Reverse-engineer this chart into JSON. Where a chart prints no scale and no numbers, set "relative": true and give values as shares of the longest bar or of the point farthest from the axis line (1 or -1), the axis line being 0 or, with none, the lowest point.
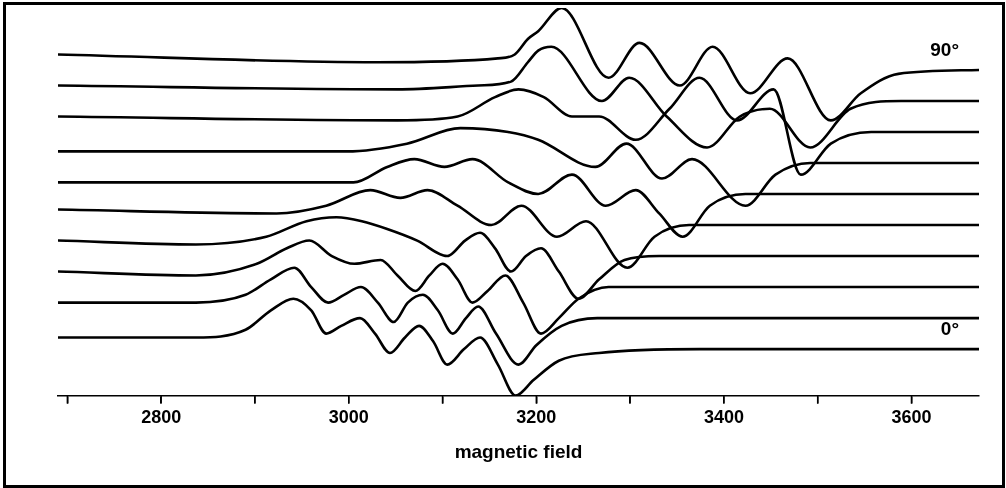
{
  "chart_data": {
    "type": "line",
    "xlabel": "magnetic field",
    "relative": true,
    "legend": false,
    "grid": false,
    "marker": "none",
    "tick_labels": "x",
    "xlim": [
      2690,
      3672
    ],
    "xticks": [
      {
        "value": 2700,
        "label": null
      },
      2800,
      {
        "value": 2900,
        "label": null
      },
      3000,
      {
        "value": 3100,
        "label": null
      },
      3200,
      {
        "value": 3300,
        "label": null
      },
      3400,
      {
        "value": 3500,
        "label": null
      },
      3600
    ],
    "series": [
      {
        "name": "0°",
        "color": "#000000",
        "x": [
          2690,
          2837,
          2890,
          2917,
          2941,
          2960,
          2976,
          2992,
          3012,
          3028,
          3044,
          3060,
          3075,
          3090,
          3105,
          3123,
          3140,
          3159,
          3178,
          3197,
          3224,
          3267,
          3374,
          3672
        ],
        "values": [
          0.15,
          0.15,
          0.17,
          0.22,
          0.25,
          0.22,
          0.16,
          0.18,
          0.2,
          0.16,
          0.11,
          0.15,
          0.18,
          0.14,
          0.08,
          0.12,
          0.15,
          0.08,
          0,
          0.04,
          0.09,
          0.11,
          0.12,
          0.12
        ]
      },
      {
        "color": "#000000",
        "x": [
          2690,
          2837,
          2890,
          2917,
          2942,
          2960,
          2978,
          2995,
          3013,
          3031,
          3048,
          3063,
          3079,
          3095,
          3111,
          3125,
          3138,
          3157,
          3181,
          3200,
          3227,
          3265,
          3372,
          3672
        ],
        "values": [
          0.24,
          0.24,
          0.26,
          0.3,
          0.33,
          0.28,
          0.24,
          0.26,
          0.28,
          0.24,
          0.19,
          0.24,
          0.26,
          0.22,
          0.16,
          0.2,
          0.23,
          0.16,
          0.08,
          0.13,
          0.18,
          0.2,
          0.2,
          0.2
        ]
      },
      {
        "color": "#000000",
        "x": [
          2690,
          2837,
          2902,
          2934,
          2958,
          2982,
          3006,
          3034,
          3052,
          3071,
          3086,
          3100,
          3116,
          3132,
          3148,
          3167,
          3186,
          3205,
          3224,
          3245,
          3277,
          3374,
          3672
        ],
        "values": [
          0.32,
          0.31,
          0.34,
          0.38,
          0.4,
          0.36,
          0.34,
          0.35,
          0.31,
          0.27,
          0.31,
          0.34,
          0.3,
          0.24,
          0.27,
          0.31,
          0.24,
          0.16,
          0.2,
          0.25,
          0.28,
          0.28,
          0.28
        ]
      },
      {
        "color": "#000000",
        "x": [
          2690,
          2837,
          2912,
          2955,
          2987,
          3014,
          3041,
          3073,
          3105,
          3124,
          3140,
          3156,
          3173,
          3189,
          3205,
          3224,
          3245,
          3267,
          3294,
          3331,
          3672
        ],
        "values": [
          0.4,
          0.39,
          0.41,
          0.45,
          0.46,
          0.45,
          0.43,
          0.4,
          0.36,
          0.4,
          0.42,
          0.38,
          0.32,
          0.36,
          0.38,
          0.32,
          0.25,
          0.3,
          0.35,
          0.36,
          0.36
        ]
      },
      {
        "color": "#000000",
        "x": [
          2690,
          2923,
          2976,
          3023,
          3055,
          3084,
          3116,
          3152,
          3184,
          3222,
          3253,
          3297,
          3326,
          3363,
          3672
        ],
        "values": [
          0.48,
          0.47,
          0.49,
          0.53,
          0.51,
          0.53,
          0.49,
          0.44,
          0.49,
          0.41,
          0.45,
          0.33,
          0.41,
          0.44,
          0.44
        ]
      },
      {
        "color": "#000000",
        "x": [
          2690,
          2944,
          3005,
          3041,
          3070,
          3102,
          3132,
          3170,
          3202,
          3238,
          3274,
          3306,
          3331,
          3356,
          3385,
          3423,
          3672
        ],
        "values": [
          0.55,
          0.55,
          0.55,
          0.59,
          0.61,
          0.59,
          0.61,
          0.55,
          0.52,
          0.57,
          0.49,
          0.53,
          0.47,
          0.41,
          0.49,
          0.52,
          0.52
        ]
      },
      {
        "color": "#000000",
        "x": [
          2690,
          2998,
          3062,
          3119,
          3170,
          3202,
          3263,
          3296,
          3334,
          3366,
          3423,
          3455,
          3492,
          3672
        ],
        "values": [
          0.63,
          0.63,
          0.65,
          0.69,
          0.68,
          0.66,
          0.59,
          0.65,
          0.56,
          0.61,
          0.49,
          0.57,
          0.6,
          0.6
        ]
      },
      {
        "color": "#000000",
        "x": [
          2690,
          3052,
          3116,
          3156,
          3181,
          3208,
          3238,
          3267,
          3306,
          3342,
          3374,
          3414,
          3453,
          3482,
          3514,
          3557,
          3672
        ],
        "values": [
          0.72,
          0.71,
          0.72,
          0.77,
          0.79,
          0.77,
          0.72,
          0.72,
          0.66,
          0.74,
          0.82,
          0.71,
          0.79,
          0.57,
          0.65,
          0.68,
          0.68
        ]
      },
      {
        "color": "#000000",
        "x": [
          2690,
          3052,
          3138,
          3173,
          3191,
          3202,
          3216,
          3270,
          3299,
          3339,
          3382,
          3417,
          3449,
          3492,
          3535,
          3589,
          3672
        ],
        "values": [
          0.8,
          0.79,
          0.8,
          0.81,
          0.86,
          0.89,
          0.9,
          0.76,
          0.82,
          0.72,
          0.64,
          0.72,
          0.74,
          0.64,
          0.74,
          0.76,
          0.76
        ]
      },
      {
        "name": "90°",
        "color": "#000000",
        "x": [
          2690,
          3030,
          3159,
          3177,
          3191,
          3202,
          3227,
          3277,
          3310,
          3353,
          3388,
          3428,
          3468,
          3514,
          3546,
          3586,
          3672
        ],
        "values": [
          0.88,
          0.86,
          0.87,
          0.88,
          0.92,
          0.94,
          1,
          0.82,
          0.91,
          0.8,
          0.9,
          0.78,
          0.87,
          0.71,
          0.78,
          0.83,
          0.84
        ]
      }
    ]
  }
}
